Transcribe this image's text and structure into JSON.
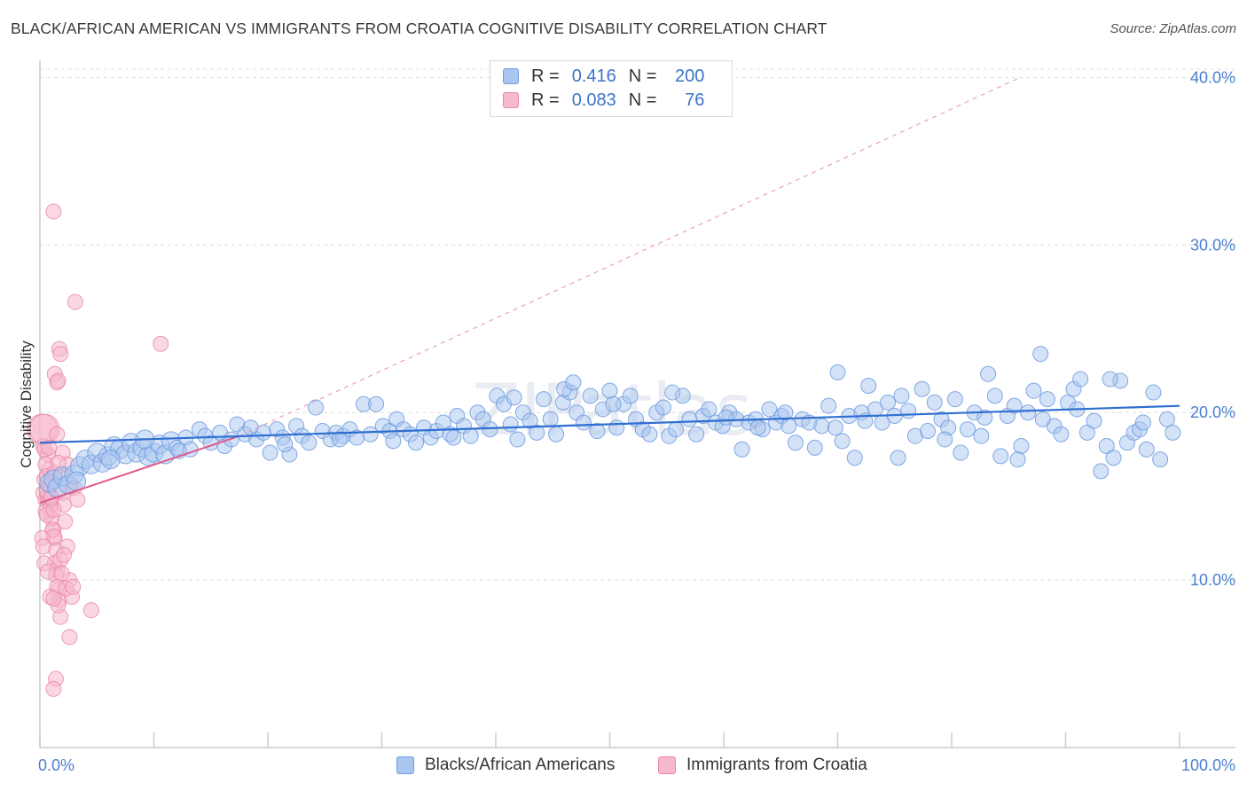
{
  "title": "BLACK/AFRICAN AMERICAN VS IMMIGRANTS FROM CROATIA COGNITIVE DISABILITY CORRELATION CHART",
  "source": "Source: ZipAtlas.com",
  "watermark": "ZIPatlas",
  "legend_top": {
    "rows": [
      {
        "r_label": "R =",
        "r_value": "0.416",
        "n_label": "N =",
        "n_value": "200",
        "color": "#a9c6f0",
        "border": "#6d9be0"
      },
      {
        "r_label": "R =",
        "r_value": "0.083",
        "n_label": "N =",
        "n_value": "76",
        "color": "#f6b8cc",
        "border": "#e986a8"
      }
    ]
  },
  "legend_bottom": {
    "items": [
      {
        "label": "Blacks/African Americans",
        "color": "#a9c6f0",
        "border": "#6d9be0"
      },
      {
        "label": "Immigrants from Croatia",
        "color": "#f6b8cc",
        "border": "#e986a8"
      }
    ]
  },
  "chart_data": {
    "type": "scatter",
    "title": "BLACK/AFRICAN AMERICAN VS IMMIGRANTS FROM CROATIA COGNITIVE DISABILITY CORRELATION CHART",
    "xlabel": "",
    "ylabel": "Cognitive Disability",
    "xlim": [
      0,
      100
    ],
    "ylim": [
      0,
      40.5
    ],
    "x_tick_labels": [
      "0.0%",
      "100.0%"
    ],
    "y_ticks": [
      10,
      20,
      30,
      40
    ],
    "y_tick_labels": [
      "10.0%",
      "20.0%",
      "30.0%",
      "40.0%"
    ],
    "grid": true,
    "colors": {
      "blue": "#6d9be0",
      "blue_fill": "#a9c6f0",
      "blue_line": "#2f6fd0",
      "pink": "#e986a8",
      "pink_fill": "#f6b8cc",
      "pink_line": "#e0588a"
    },
    "series": [
      {
        "name": "Blacks/African Americans",
        "r": 0.416,
        "n": 200,
        "trend": {
          "x0": 0,
          "y0": 18.2,
          "x1": 100,
          "y1": 20.4
        },
        "points": [
          [
            0.8,
            15.8
          ],
          [
            1.2,
            16.0
          ],
          [
            1.5,
            15.5
          ],
          [
            2.0,
            16.2
          ],
          [
            2.5,
            15.7
          ],
          [
            3.0,
            16.3
          ],
          [
            3.5,
            16.8
          ],
          [
            4.0,
            17.2
          ],
          [
            4.5,
            16.9
          ],
          [
            5.0,
            17.6
          ],
          [
            5.5,
            17.0
          ],
          [
            6.0,
            17.4
          ],
          [
            6.5,
            18.0
          ],
          [
            7.0,
            17.8
          ],
          [
            7.5,
            17.5
          ],
          [
            8.0,
            18.2
          ],
          [
            8.5,
            17.6
          ],
          [
            9.0,
            17.9
          ],
          [
            9.5,
            17.4
          ],
          [
            10.0,
            17.6
          ],
          [
            10.5,
            18.1
          ],
          [
            11.0,
            17.5
          ],
          [
            11.5,
            18.3
          ],
          [
            12.0,
            17.9
          ],
          [
            12.8,
            18.5
          ],
          [
            13.2,
            17.8
          ],
          [
            14.0,
            19.0
          ],
          [
            14.5,
            18.6
          ],
          [
            15.0,
            18.2
          ],
          [
            15.8,
            18.8
          ],
          [
            16.2,
            18.0
          ],
          [
            16.8,
            18.4
          ],
          [
            17.3,
            19.3
          ],
          [
            18.0,
            18.7
          ],
          [
            18.5,
            19.1
          ],
          [
            19.0,
            18.4
          ],
          [
            19.6,
            18.8
          ],
          [
            20.2,
            17.6
          ],
          [
            20.8,
            19.0
          ],
          [
            21.3,
            18.5
          ],
          [
            21.9,
            17.5
          ],
          [
            22.5,
            19.2
          ],
          [
            23.0,
            18.6
          ],
          [
            23.6,
            18.2
          ],
          [
            24.2,
            20.3
          ],
          [
            24.8,
            18.9
          ],
          [
            25.5,
            18.4
          ],
          [
            26.0,
            18.8
          ],
          [
            26.6,
            18.6
          ],
          [
            27.2,
            19.0
          ],
          [
            27.8,
            18.5
          ],
          [
            28.4,
            20.5
          ],
          [
            29.0,
            18.7
          ],
          [
            29.5,
            20.5
          ],
          [
            30.1,
            19.2
          ],
          [
            30.7,
            18.9
          ],
          [
            31.3,
            19.6
          ],
          [
            31.9,
            19.0
          ],
          [
            32.5,
            18.7
          ],
          [
            33.0,
            18.2
          ],
          [
            33.7,
            19.1
          ],
          [
            34.3,
            18.5
          ],
          [
            34.8,
            18.9
          ],
          [
            35.4,
            19.4
          ],
          [
            36.0,
            18.7
          ],
          [
            36.6,
            19.8
          ],
          [
            37.2,
            19.2
          ],
          [
            37.8,
            18.6
          ],
          [
            38.4,
            20.0
          ],
          [
            38.9,
            19.6
          ],
          [
            39.5,
            19.0
          ],
          [
            40.1,
            21.0
          ],
          [
            40.7,
            20.5
          ],
          [
            41.3,
            19.3
          ],
          [
            41.9,
            18.4
          ],
          [
            42.4,
            20.0
          ],
          [
            43.0,
            19.5
          ],
          [
            43.6,
            18.8
          ],
          [
            44.2,
            20.8
          ],
          [
            44.8,
            19.6
          ],
          [
            45.3,
            18.7
          ],
          [
            45.9,
            20.6
          ],
          [
            46.5,
            21.2
          ],
          [
            47.1,
            20.0
          ],
          [
            47.7,
            19.4
          ],
          [
            48.3,
            21.0
          ],
          [
            48.9,
            18.9
          ],
          [
            49.4,
            20.2
          ],
          [
            50.0,
            21.3
          ],
          [
            50.6,
            19.1
          ],
          [
            51.2,
            20.5
          ],
          [
            51.8,
            21.0
          ],
          [
            52.3,
            19.6
          ],
          [
            52.9,
            19.0
          ],
          [
            53.5,
            18.7
          ],
          [
            54.1,
            20.0
          ],
          [
            54.7,
            20.3
          ],
          [
            55.2,
            18.6
          ],
          [
            55.8,
            19.0
          ],
          [
            56.4,
            21.0
          ],
          [
            57.0,
            19.6
          ],
          [
            57.6,
            18.7
          ],
          [
            58.2,
            19.8
          ],
          [
            58.7,
            20.2
          ],
          [
            59.3,
            19.4
          ],
          [
            59.9,
            19.2
          ],
          [
            60.5,
            20.0
          ],
          [
            61.1,
            19.6
          ],
          [
            61.6,
            17.8
          ],
          [
            62.2,
            19.4
          ],
          [
            62.8,
            19.6
          ],
          [
            63.4,
            19.0
          ],
          [
            64.0,
            20.2
          ],
          [
            64.6,
            19.4
          ],
          [
            65.1,
            19.8
          ],
          [
            65.7,
            19.2
          ],
          [
            66.3,
            18.2
          ],
          [
            66.9,
            19.6
          ],
          [
            67.5,
            19.4
          ],
          [
            68.0,
            17.9
          ],
          [
            68.6,
            19.2
          ],
          [
            69.2,
            20.4
          ],
          [
            69.8,
            19.1
          ],
          [
            70.4,
            18.3
          ],
          [
            71.0,
            19.8
          ],
          [
            71.5,
            17.3
          ],
          [
            72.1,
            20.0
          ],
          [
            72.7,
            21.6
          ],
          [
            73.3,
            20.2
          ],
          [
            73.9,
            19.4
          ],
          [
            74.4,
            20.6
          ],
          [
            75.0,
            19.8
          ],
          [
            75.6,
            21.0
          ],
          [
            76.2,
            20.1
          ],
          [
            76.8,
            18.6
          ],
          [
            77.4,
            21.4
          ],
          [
            77.9,
            18.9
          ],
          [
            78.5,
            20.6
          ],
          [
            79.1,
            19.6
          ],
          [
            79.7,
            19.1
          ],
          [
            80.3,
            20.8
          ],
          [
            80.8,
            17.6
          ],
          [
            81.4,
            19.0
          ],
          [
            82.0,
            20.0
          ],
          [
            82.6,
            18.6
          ],
          [
            83.2,
            22.3
          ],
          [
            83.8,
            21.0
          ],
          [
            84.3,
            17.4
          ],
          [
            84.9,
            19.8
          ],
          [
            85.5,
            20.4
          ],
          [
            86.1,
            18.0
          ],
          [
            86.7,
            20.0
          ],
          [
            87.2,
            21.3
          ],
          [
            87.8,
            23.5
          ],
          [
            88.4,
            20.8
          ],
          [
            89.0,
            19.2
          ],
          [
            89.6,
            18.7
          ],
          [
            90.2,
            20.6
          ],
          [
            90.7,
            21.4
          ],
          [
            91.3,
            22.0
          ],
          [
            91.9,
            18.8
          ],
          [
            92.5,
            19.5
          ],
          [
            93.1,
            16.5
          ],
          [
            93.6,
            18.0
          ],
          [
            94.2,
            17.3
          ],
          [
            94.8,
            21.9
          ],
          [
            95.4,
            18.2
          ],
          [
            96.0,
            18.8
          ],
          [
            96.5,
            19.0
          ],
          [
            97.1,
            17.8
          ],
          [
            97.7,
            21.2
          ],
          [
            98.3,
            17.2
          ],
          [
            98.9,
            19.6
          ],
          [
            99.4,
            18.8
          ],
          [
            3.2,
            15.9
          ],
          [
            6.2,
            17.2
          ],
          [
            9.2,
            18.4
          ],
          [
            12.2,
            17.7
          ],
          [
            21.5,
            18.1
          ],
          [
            26.3,
            18.4
          ],
          [
            31.0,
            18.3
          ],
          [
            36.3,
            18.5
          ],
          [
            41.6,
            20.9
          ],
          [
            46.0,
            21.4
          ],
          [
            50.3,
            20.5
          ],
          [
            55.5,
            21.2
          ],
          [
            60.2,
            19.7
          ],
          [
            63.0,
            19.1
          ],
          [
            65.4,
            20.0
          ],
          [
            70.0,
            22.4
          ],
          [
            72.4,
            19.5
          ],
          [
            75.3,
            17.3
          ],
          [
            79.4,
            18.4
          ],
          [
            82.9,
            19.7
          ],
          [
            85.8,
            17.2
          ],
          [
            88.0,
            19.6
          ],
          [
            91.0,
            20.2
          ],
          [
            93.9,
            22.0
          ],
          [
            96.8,
            19.4
          ],
          [
            46.8,
            21.8
          ]
        ]
      },
      {
        "name": "Immigrants from Croatia",
        "r": 0.083,
        "n": 76,
        "trend": {
          "x0": 0,
          "y0": 14.6,
          "x1": 17.5,
          "y1": 18.6
        },
        "trend_extrapolation": {
          "x0": 17.5,
          "y0": 18.6,
          "x1": 86,
          "y1": 40.0
        },
        "points": [
          [
            0.2,
            19.0
          ],
          [
            0.3,
            15.2
          ],
          [
            0.4,
            16.0
          ],
          [
            0.5,
            14.8
          ],
          [
            0.6,
            15.5
          ],
          [
            0.7,
            17.5
          ],
          [
            0.8,
            16.6
          ],
          [
            0.9,
            15.0
          ],
          [
            1.0,
            14.6
          ],
          [
            1.1,
            15.8
          ],
          [
            1.2,
            13.0
          ],
          [
            1.3,
            12.5
          ],
          [
            1.4,
            11.8
          ],
          [
            1.5,
            10.6
          ],
          [
            1.6,
            9.4
          ],
          [
            1.7,
            8.8
          ],
          [
            1.8,
            7.8
          ],
          [
            1.9,
            16.3
          ],
          [
            2.0,
            15.2
          ],
          [
            2.1,
            14.5
          ],
          [
            2.2,
            13.5
          ],
          [
            2.4,
            12.0
          ],
          [
            2.6,
            10.0
          ],
          [
            2.8,
            9.0
          ],
          [
            3.0,
            15.5
          ],
          [
            3.3,
            14.8
          ],
          [
            0.3,
            18.0
          ],
          [
            0.4,
            17.8
          ],
          [
            0.5,
            16.9
          ],
          [
            0.6,
            16.2
          ],
          [
            0.7,
            15.0
          ],
          [
            0.8,
            14.7
          ],
          [
            0.9,
            14.2
          ],
          [
            1.0,
            13.7
          ],
          [
            1.1,
            13.0
          ],
          [
            1.2,
            12.6
          ],
          [
            1.3,
            11.0
          ],
          [
            1.4,
            10.3
          ],
          [
            1.5,
            9.6
          ],
          [
            1.6,
            8.5
          ],
          [
            1.2,
            32.0
          ],
          [
            3.1,
            26.6
          ],
          [
            10.6,
            24.1
          ],
          [
            1.7,
            23.8
          ],
          [
            1.8,
            23.5
          ],
          [
            1.3,
            22.3
          ],
          [
            1.5,
            21.8
          ],
          [
            1.6,
            21.9
          ],
          [
            0.4,
            19.0
          ],
          [
            1.5,
            18.7
          ],
          [
            2.0,
            17.6
          ],
          [
            0.8,
            17.9
          ],
          [
            2.4,
            16.9
          ],
          [
            0.5,
            14.1
          ],
          [
            0.6,
            13.9
          ],
          [
            1.2,
            14.2
          ],
          [
            0.2,
            12.5
          ],
          [
            0.3,
            12.0
          ],
          [
            0.4,
            11.0
          ],
          [
            1.8,
            11.2
          ],
          [
            2.1,
            11.5
          ],
          [
            0.7,
            10.5
          ],
          [
            1.9,
            10.4
          ],
          [
            2.3,
            9.5
          ],
          [
            0.9,
            9.0
          ],
          [
            1.2,
            8.9
          ],
          [
            2.9,
            9.6
          ],
          [
            4.5,
            8.2
          ],
          [
            2.6,
            6.6
          ],
          [
            1.4,
            4.1
          ],
          [
            1.2,
            3.5
          ],
          [
            0.6,
            15.3
          ],
          [
            0.9,
            15.7
          ],
          [
            1.3,
            16.4
          ],
          [
            1.6,
            17.0
          ],
          [
            1.0,
            14.9
          ]
        ]
      }
    ]
  }
}
